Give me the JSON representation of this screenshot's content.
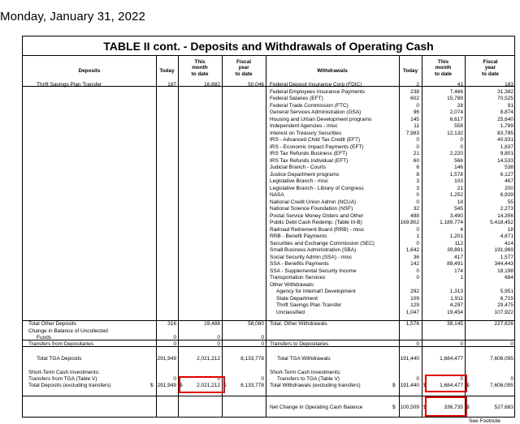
{
  "date": "Monday, January 31, 2022",
  "title": "TABLE II cont. - Deposits and Withdrawals of Operating Cash",
  "headers": {
    "deposits": "Deposits",
    "today": "Today",
    "month": [
      "This",
      "month",
      "to date"
    ],
    "fiscal": [
      "Fiscal",
      "year",
      "to date"
    ],
    "withdrawals": "Withdrawals"
  },
  "deposit_rows": [
    {
      "label": "Thrift Savings Plan Transfer",
      "today": "187",
      "month": "16,882",
      "fiscal": "50,046"
    }
  ],
  "withdrawal_rows": [
    {
      "label": "Federal Deposit Insurance Corp (FDIC)",
      "today": "2",
      "month": "41",
      "fiscal": "183"
    },
    {
      "label": "Federal Employees Insurance Payments",
      "today": "238",
      "month": "7,466",
      "fiscal": "31,382"
    },
    {
      "label": "Federal Salaries (EFT)",
      "today": "602",
      "month": "15,789",
      "fiscal": "70,525"
    },
    {
      "label": "Federal Trade Commission (FTC)",
      "today": "0",
      "month": "28",
      "fiscal": "91"
    },
    {
      "label": "General Services Administration (GSA)",
      "today": "96",
      "month": "2,074",
      "fiscal": "8,874"
    },
    {
      "label": "Housing and Urban Development programs",
      "today": "145",
      "month": "6,617",
      "fiscal": "25,640"
    },
    {
      "label": "Independent Agencies - misc",
      "today": "11",
      "month": "558",
      "fiscal": "1,789"
    },
    {
      "label": "Interest on Treasury Securities",
      "today": "7,983",
      "month": "12,132",
      "fiscal": "83,785"
    },
    {
      "label": "IRS - Advanced Child Tax Credit (EFT)",
      "today": "0",
      "month": "0",
      "fiscal": "40,931"
    },
    {
      "label": "IRS - Economic Impact Payments (EFT)",
      "today": "0",
      "month": "0",
      "fiscal": "1,837"
    },
    {
      "label": "IRS Tax Refunds Business (EFT)",
      "today": "21",
      "month": "2,220",
      "fiscal": "9,801"
    },
    {
      "label": "IRS Tax Refunds Individual (EFT)",
      "today": "60",
      "month": "566",
      "fiscal": "14,533"
    },
    {
      "label": "Judicial Branch - Courts",
      "today": "6",
      "month": "146",
      "fiscal": "538"
    },
    {
      "label": "Justice Department programs",
      "today": "8",
      "month": "1,578",
      "fiscal": "6,127"
    },
    {
      "label": "Legislative Branch - misc",
      "today": "3",
      "month": "103",
      "fiscal": "467"
    },
    {
      "label": "Legislative Branch - Library of Congress",
      "today": "3",
      "month": "21",
      "fiscal": "200"
    },
    {
      "label": "NASA",
      "today": "0",
      "month": "1,252",
      "fiscal": "6,939"
    },
    {
      "label": "National Credit Union Admin (NCUA)",
      "today": "0",
      "month": "18",
      "fiscal": "55"
    },
    {
      "label": "National Science Foundation (NSF)",
      "today": "32",
      "month": "545",
      "fiscal": "2,273"
    },
    {
      "label": "Postal Service Money Orders and Other",
      "today": "488",
      "month": "3,490",
      "fiscal": "14,356"
    },
    {
      "label": "Public Debt Cash Redemp. (Table III-B)",
      "today": "169,802",
      "month": "1,189,774",
      "fiscal": "5,418,452"
    },
    {
      "label": "Railroad Retirement Board (RRB) - misc",
      "today": "0",
      "month": "4",
      "fiscal": "18"
    },
    {
      "label": "RRB - Benefit Payments",
      "today": "1",
      "month": "1,201",
      "fiscal": "4,671"
    },
    {
      "label": "Securities and Exchange Commission (SEC)",
      "today": "0",
      "month": "112",
      "fiscal": "414"
    },
    {
      "label": "Small Business Administration (SBA)",
      "today": "1,642",
      "month": "39,891",
      "fiscal": "191,969"
    },
    {
      "label": "Social Security Admin (SSA) - misc",
      "today": "36",
      "month": "417",
      "fiscal": "1,577"
    },
    {
      "label": "SSA - Benefits Payments",
      "today": "142",
      "month": "89,491",
      "fiscal": "344,443"
    },
    {
      "label": "SSA - Supplemental Security Income",
      "today": "0",
      "month": "174",
      "fiscal": "18,198"
    },
    {
      "label": "Transportation Services",
      "today": "0",
      "month": "1",
      "fiscal": "684"
    },
    {
      "label": "Other Withdrawals:",
      "today": "",
      "month": "",
      "fiscal": ""
    },
    {
      "label": "Agency for Internat'l Development",
      "today": "292",
      "month": "1,313",
      "fiscal": "5,951",
      "indent": true
    },
    {
      "label": "State Department",
      "today": "109",
      "month": "1,911",
      "fiscal": "6,719",
      "indent": true
    },
    {
      "label": "Thrift Savings Plan Transfer",
      "today": "129",
      "month": "4,297",
      "fiscal": "29,475",
      "indent": true
    },
    {
      "label": "Unclassified",
      "today": "1,047",
      "month": "19,454",
      "fiscal": "107,922",
      "indent": true
    }
  ],
  "summary": {
    "total_other_deposits": {
      "label": "Total Other Deposits",
      "today": "316",
      "month": "19,488",
      "fiscal": "58,080"
    },
    "change_uncollected": {
      "label_1": "Change in Balance of Uncollected",
      "label_2": "Funds",
      "today": "0",
      "month": "0",
      "fiscal": "0"
    },
    "transfers_from_depositaries": {
      "label": "Transfers from Depositaries",
      "today": "0",
      "month": "0",
      "fiscal": "0"
    },
    "total_other_withdrawals": {
      "label": "Total, Other Withdrawals",
      "today": "1,576",
      "month": "38,145",
      "fiscal": "227,626"
    },
    "transfers_to_depositaries": {
      "label": "Transfers to Depositaries",
      "today": "0",
      "month": "0",
      "fiscal": "0"
    },
    "total_tga_deposits": {
      "label": "Total TGA Deposits",
      "today": "291,949",
      "month": "2,021,212",
      "fiscal": "8,133,778"
    },
    "total_tga_withdrawals": {
      "label": "Total TGA Withdrawals",
      "today": "191,440",
      "month": "1,684,477",
      "fiscal": "7,606,095"
    },
    "short_term_left": "Short-Term Cash Investments:",
    "transfers_from_tga": {
      "label": "Transfers from TGA (Table V)",
      "today": "0",
      "month": "0",
      "fiscal": "0"
    },
    "total_deposits_excl": {
      "label": "Total Deposits (excluding transfers)",
      "today": "291,949",
      "month": "2,021,212",
      "fiscal": "8,133,778"
    },
    "short_term_right": "Short-Term Cash Investments:",
    "transfers_to_tga": {
      "label": "Transfers to TGA (Table V)",
      "today": "0",
      "month": "0",
      "fiscal": "0"
    },
    "total_withdrawals_excl": {
      "label": "Total Withdrawals (excluding transfers)",
      "today": "191,440",
      "month": "1,684,477",
      "fiscal": "7,606,095"
    },
    "net_change": {
      "label": "Net Change in Operating Cash Balance",
      "today": "100,509",
      "month": "336,735",
      "fiscal": "527,683"
    },
    "dollar": "$"
  },
  "footnote": "See Footnote"
}
